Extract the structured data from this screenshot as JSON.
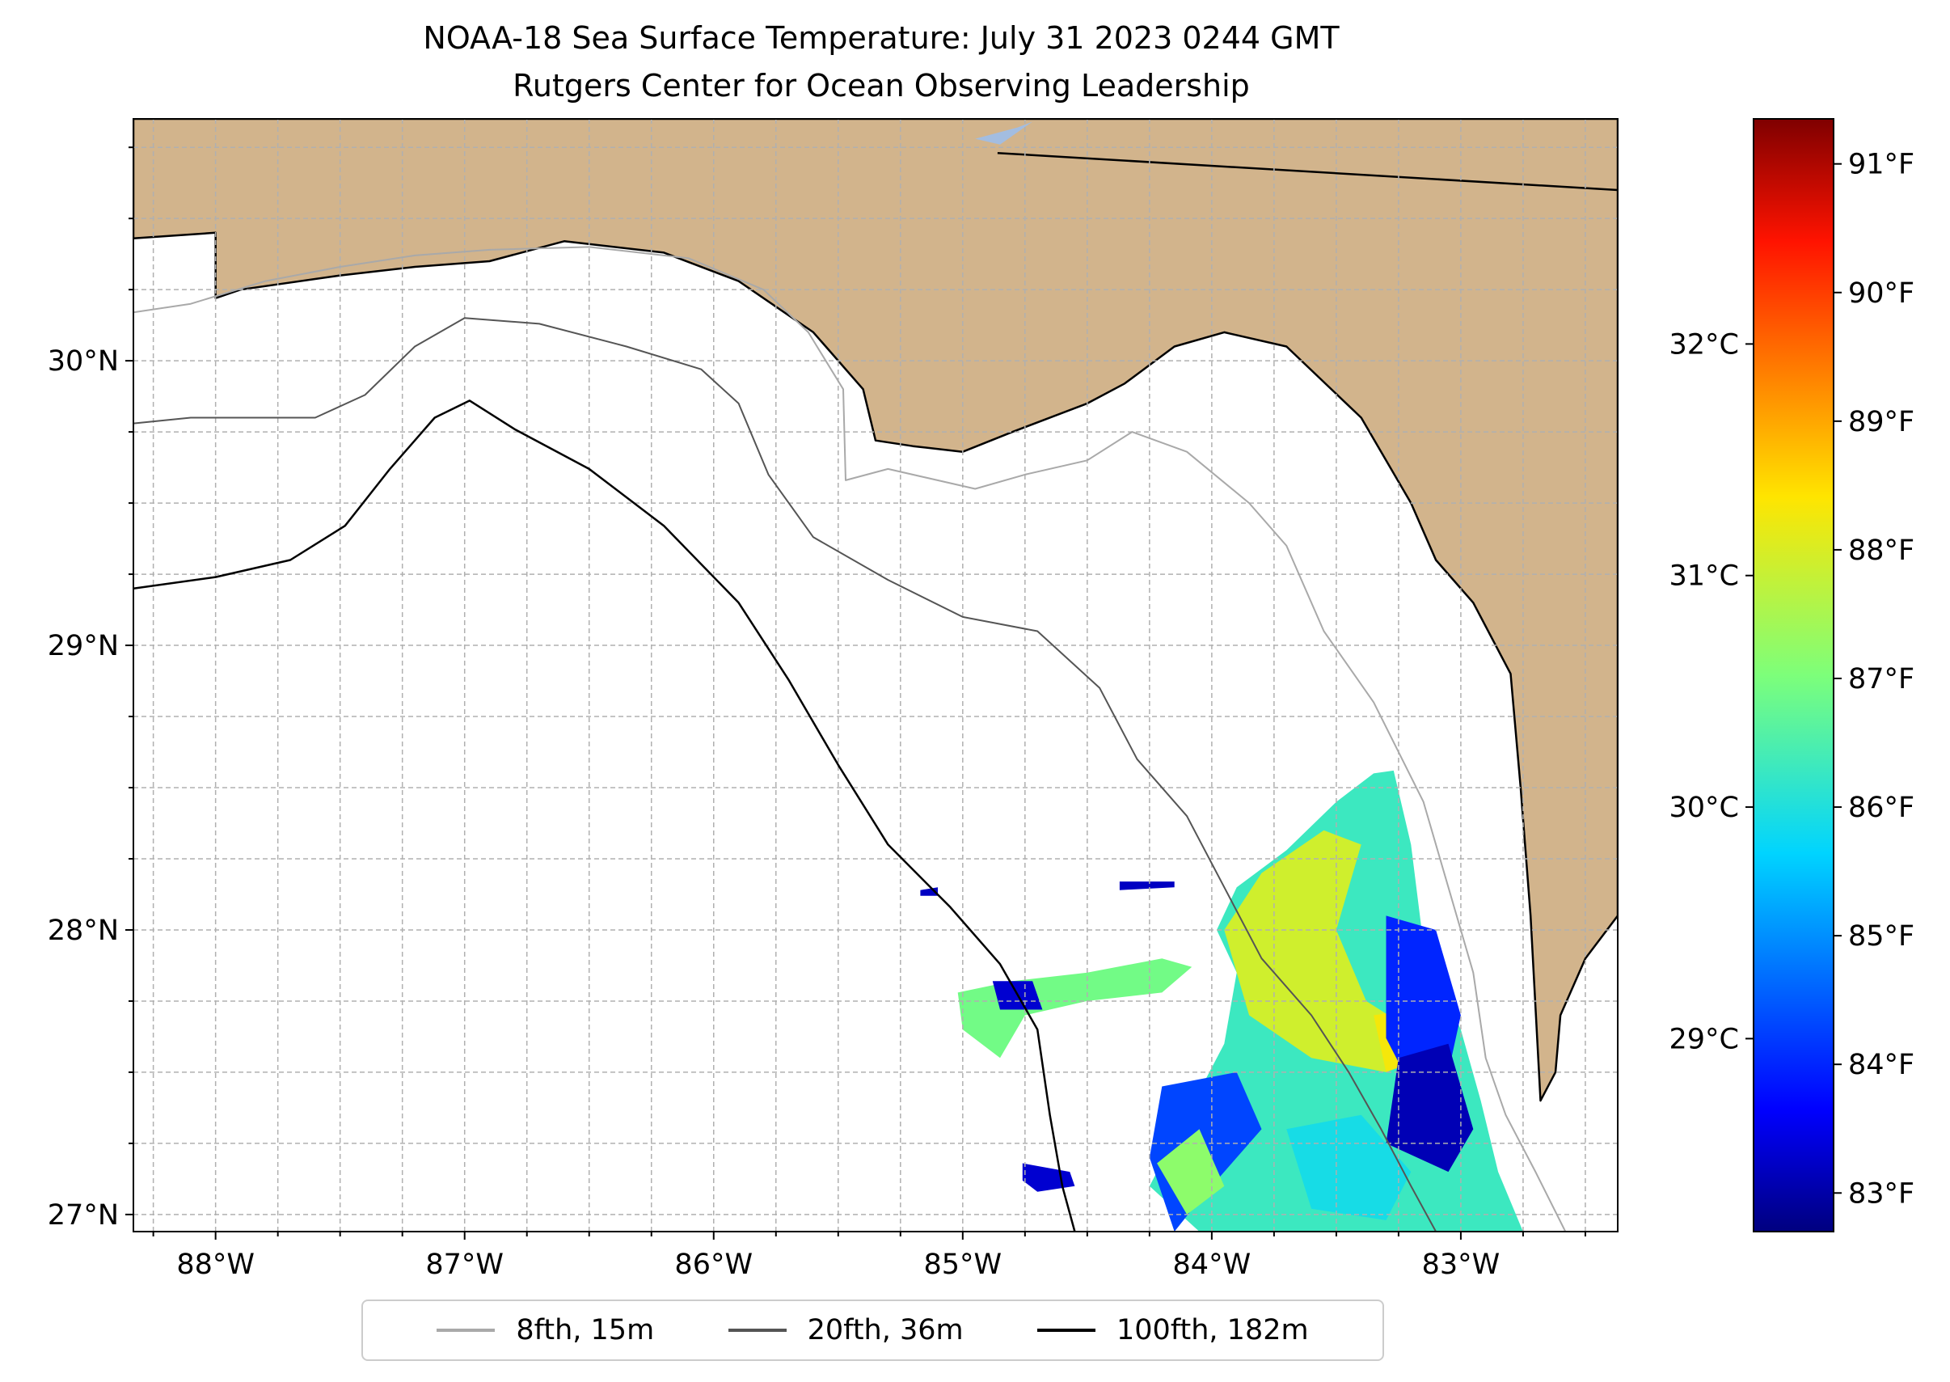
{
  "title": {
    "line1": "NOAA-18 Sea Surface Temperature: July 31 2023 0244 GMT",
    "line2": "Rutgers Center for Ocean Observing Leadership"
  },
  "map": {
    "lon_range": [
      -88.33,
      -82.37
    ],
    "lat_range": [
      26.94,
      30.85
    ],
    "lon_ticks": [
      {
        "value": -88,
        "label": "88°W"
      },
      {
        "value": -87,
        "label": "87°W"
      },
      {
        "value": -86,
        "label": "86°W"
      },
      {
        "value": -85,
        "label": "85°W"
      },
      {
        "value": -84,
        "label": "84°W"
      },
      {
        "value": -83,
        "label": "83°W"
      }
    ],
    "lat_ticks": [
      {
        "value": 27,
        "label": "27°N"
      },
      {
        "value": 28,
        "label": "28°N"
      },
      {
        "value": 29,
        "label": "29°N"
      },
      {
        "value": 30,
        "label": "30°N"
      }
    ],
    "colors": {
      "land": "#d2b48c",
      "ocean": "#ffffff",
      "lake": "#a3bde0",
      "grid": "#b0b0b0"
    }
  },
  "colorbar": {
    "colormap": "jet",
    "range_f": [
      82.7,
      91.35
    ],
    "f_ticks": [
      {
        "value": 83,
        "label": "83°F"
      },
      {
        "value": 84,
        "label": "84°F"
      },
      {
        "value": 85,
        "label": "85°F"
      },
      {
        "value": 86,
        "label": "86°F"
      },
      {
        "value": 87,
        "label": "87°F"
      },
      {
        "value": 88,
        "label": "88°F"
      },
      {
        "value": 89,
        "label": "89°F"
      },
      {
        "value": 90,
        "label": "90°F"
      },
      {
        "value": 91,
        "label": "91°F"
      }
    ],
    "c_ticks": [
      {
        "value": 29,
        "label": "29°C"
      },
      {
        "value": 30,
        "label": "30°C"
      },
      {
        "value": 31,
        "label": "31°C"
      },
      {
        "value": 32,
        "label": "32°C"
      }
    ]
  },
  "legend": {
    "items": [
      {
        "label": "8fth, 15m",
        "color": "#a9a9a9"
      },
      {
        "label": "20fth, 36m",
        "color": "#555555"
      },
      {
        "label": "100fth, 182m",
        "color": "#000000"
      }
    ]
  },
  "isobaths": [
    {
      "name": "8fth",
      "color": "#a9a9a9",
      "width": 2,
      "points": [
        [
          -88.33,
          30.17
        ],
        [
          -88.1,
          30.2
        ],
        [
          -87.8,
          30.28
        ],
        [
          -87.5,
          30.33
        ],
        [
          -87.2,
          30.37
        ],
        [
          -86.9,
          30.39
        ],
        [
          -86.5,
          30.4
        ],
        [
          -86.1,
          30.36
        ],
        [
          -85.8,
          30.25
        ],
        [
          -85.62,
          30.1
        ],
        [
          -85.48,
          29.9
        ],
        [
          -85.47,
          29.58
        ],
        [
          -85.3,
          29.62
        ],
        [
          -84.95,
          29.55
        ],
        [
          -84.75,
          29.6
        ],
        [
          -84.5,
          29.65
        ],
        [
          -84.32,
          29.75
        ],
        [
          -84.1,
          29.68
        ],
        [
          -83.85,
          29.5
        ],
        [
          -83.7,
          29.35
        ],
        [
          -83.55,
          29.05
        ],
        [
          -83.35,
          28.8
        ],
        [
          -83.15,
          28.45
        ],
        [
          -83.05,
          28.15
        ],
        [
          -82.95,
          27.85
        ],
        [
          -82.9,
          27.55
        ],
        [
          -82.82,
          27.35
        ],
        [
          -82.7,
          27.15
        ],
        [
          -82.58,
          26.94
        ]
      ]
    },
    {
      "name": "20fth",
      "color": "#555555",
      "width": 2,
      "points": [
        [
          -88.33,
          29.78
        ],
        [
          -88.1,
          29.8
        ],
        [
          -87.85,
          29.8
        ],
        [
          -87.6,
          29.8
        ],
        [
          -87.4,
          29.88
        ],
        [
          -87.2,
          30.05
        ],
        [
          -87.0,
          30.15
        ],
        [
          -86.7,
          30.13
        ],
        [
          -86.35,
          30.05
        ],
        [
          -86.05,
          29.97
        ],
        [
          -85.9,
          29.85
        ],
        [
          -85.78,
          29.6
        ],
        [
          -85.6,
          29.38
        ],
        [
          -85.3,
          29.23
        ],
        [
          -85.0,
          29.1
        ],
        [
          -84.7,
          29.05
        ],
        [
          -84.45,
          28.85
        ],
        [
          -84.3,
          28.6
        ],
        [
          -84.1,
          28.4
        ],
        [
          -83.95,
          28.15
        ],
        [
          -83.8,
          27.9
        ],
        [
          -83.6,
          27.7
        ],
        [
          -83.45,
          27.5
        ],
        [
          -83.32,
          27.3
        ],
        [
          -83.2,
          27.1
        ],
        [
          -83.1,
          26.94
        ]
      ]
    },
    {
      "name": "100fth",
      "color": "#000000",
      "width": 2.5,
      "points": [
        [
          -88.33,
          29.2
        ],
        [
          -88.0,
          29.24
        ],
        [
          -87.7,
          29.3
        ],
        [
          -87.48,
          29.42
        ],
        [
          -87.3,
          29.62
        ],
        [
          -87.12,
          29.8
        ],
        [
          -86.98,
          29.86
        ],
        [
          -86.8,
          29.76
        ],
        [
          -86.5,
          29.62
        ],
        [
          -86.2,
          29.42
        ],
        [
          -85.9,
          29.15
        ],
        [
          -85.7,
          28.88
        ],
        [
          -85.5,
          28.58
        ],
        [
          -85.3,
          28.3
        ],
        [
          -85.05,
          28.08
        ],
        [
          -84.85,
          27.88
        ],
        [
          -84.7,
          27.65
        ],
        [
          -84.65,
          27.35
        ],
        [
          -84.6,
          27.1
        ],
        [
          -84.55,
          26.94
        ]
      ]
    }
  ],
  "sst_patches": [
    {
      "temp_f": 86.3,
      "points": [
        [
          -83.98,
          28.0
        ],
        [
          -83.9,
          28.15
        ],
        [
          -83.7,
          28.28
        ],
        [
          -83.5,
          28.45
        ],
        [
          -83.35,
          28.55
        ],
        [
          -83.27,
          28.56
        ],
        [
          -83.2,
          28.3
        ],
        [
          -83.15,
          27.95
        ],
        [
          -83.0,
          27.65
        ],
        [
          -82.92,
          27.4
        ],
        [
          -82.85,
          27.15
        ],
        [
          -82.75,
          26.94
        ],
        [
          -84.05,
          26.94
        ],
        [
          -84.25,
          27.1
        ],
        [
          -84.1,
          27.35
        ],
        [
          -83.95,
          27.6
        ],
        [
          -83.9,
          27.85
        ]
      ]
    },
    {
      "temp_f": 87.9,
      "points": [
        [
          -83.95,
          28.0
        ],
        [
          -83.8,
          28.2
        ],
        [
          -83.55,
          28.35
        ],
        [
          -83.4,
          28.3
        ],
        [
          -83.5,
          28.0
        ],
        [
          -83.38,
          27.75
        ],
        [
          -83.2,
          27.65
        ],
        [
          -83.3,
          27.5
        ],
        [
          -83.6,
          27.55
        ],
        [
          -83.85,
          27.7
        ]
      ]
    },
    {
      "temp_f": 88.3,
      "points": [
        [
          -83.35,
          27.7
        ],
        [
          -83.2,
          27.72
        ],
        [
          -83.15,
          27.55
        ],
        [
          -83.3,
          27.5
        ]
      ]
    },
    {
      "temp_f": 84.0,
      "points": [
        [
          -83.3,
          28.05
        ],
        [
          -83.1,
          28.0
        ],
        [
          -83.0,
          27.7
        ],
        [
          -83.05,
          27.5
        ],
        [
          -83.2,
          27.45
        ],
        [
          -83.3,
          27.62
        ]
      ]
    },
    {
      "temp_f": 83.1,
      "points": [
        [
          -83.25,
          27.55
        ],
        [
          -83.05,
          27.6
        ],
        [
          -82.95,
          27.3
        ],
        [
          -83.05,
          27.15
        ],
        [
          -83.3,
          27.25
        ]
      ]
    },
    {
      "temp_f": 84.3,
      "points": [
        [
          -84.2,
          27.45
        ],
        [
          -83.9,
          27.5
        ],
        [
          -83.8,
          27.3
        ],
        [
          -84.05,
          27.05
        ],
        [
          -84.15,
          26.94
        ],
        [
          -84.25,
          27.2
        ]
      ]
    },
    {
      "temp_f": 85.9,
      "points": [
        [
          -83.7,
          27.3
        ],
        [
          -83.4,
          27.35
        ],
        [
          -83.2,
          27.15
        ],
        [
          -83.3,
          26.98
        ],
        [
          -83.6,
          27.02
        ]
      ]
    },
    {
      "temp_f": 87.2,
      "points": [
        [
          -84.22,
          27.18
        ],
        [
          -84.05,
          27.3
        ],
        [
          -83.95,
          27.1
        ],
        [
          -84.1,
          27.0
        ]
      ]
    },
    {
      "temp_f": 86.9,
      "points": [
        [
          -85.02,
          27.78
        ],
        [
          -84.8,
          27.82
        ],
        [
          -84.5,
          27.85
        ],
        [
          -84.2,
          27.9
        ],
        [
          -84.08,
          27.87
        ],
        [
          -84.2,
          27.78
        ],
        [
          -84.5,
          27.75
        ],
        [
          -84.75,
          27.7
        ],
        [
          -84.85,
          27.55
        ],
        [
          -85.0,
          27.65
        ]
      ]
    },
    {
      "temp_f": 83.3,
      "points": [
        [
          -84.88,
          27.82
        ],
        [
          -84.72,
          27.82
        ],
        [
          -84.68,
          27.72
        ],
        [
          -84.85,
          27.72
        ]
      ]
    },
    {
      "temp_f": 83.3,
      "points": [
        [
          -84.76,
          27.18
        ],
        [
          -84.57,
          27.15
        ],
        [
          -84.55,
          27.1
        ],
        [
          -84.7,
          27.08
        ],
        [
          -84.76,
          27.12
        ]
      ]
    },
    {
      "temp_f": 83.2,
      "points": [
        [
          -85.17,
          28.14
        ],
        [
          -85.1,
          28.15
        ],
        [
          -85.1,
          28.12
        ],
        [
          -85.17,
          28.12
        ]
      ]
    },
    {
      "temp_f": 83.2,
      "points": [
        [
          -84.37,
          28.17
        ],
        [
          -84.15,
          28.17
        ],
        [
          -84.15,
          28.15
        ],
        [
          -84.37,
          28.14
        ]
      ]
    }
  ],
  "land_areas": [
    {
      "name": "north-land",
      "points": [
        [
          -88.33,
          30.85
        ],
        [
          -82.37,
          30.85
        ],
        [
          -82.37,
          28.05
        ],
        [
          -82.5,
          27.9
        ],
        [
          -82.6,
          27.7
        ],
        [
          -82.62,
          27.5
        ],
        [
          -82.68,
          27.4
        ],
        [
          -82.72,
          28.05
        ],
        [
          -82.76,
          28.5
        ],
        [
          -82.8,
          28.9
        ],
        [
          -82.95,
          29.15
        ],
        [
          -83.1,
          29.3
        ],
        [
          -83.2,
          29.5
        ],
        [
          -83.4,
          29.8
        ],
        [
          -83.7,
          30.05
        ],
        [
          -83.95,
          30.1
        ],
        [
          -84.15,
          30.05
        ],
        [
          -84.35,
          29.92
        ],
        [
          -84.5,
          29.85
        ],
        [
          -84.8,
          29.75
        ],
        [
          -85.0,
          29.68
        ],
        [
          -85.2,
          29.7
        ],
        [
          -85.35,
          29.72
        ],
        [
          -85.4,
          29.9
        ],
        [
          -85.6,
          30.1
        ],
        [
          -85.9,
          30.28
        ],
        [
          -86.2,
          30.38
        ],
        [
          -86.6,
          30.42
        ],
        [
          -86.9,
          30.35
        ],
        [
          -87.2,
          30.33
        ],
        [
          -87.5,
          30.3
        ],
        [
          -87.9,
          30.25
        ],
        [
          -88.0,
          30.22
        ],
        [
          -88.0,
          30.45
        ],
        [
          -88.33,
          30.43
        ]
      ]
    }
  ],
  "boundary": [
    [
      -84.86,
      30.73
    ],
    [
      -82.37,
      30.6
    ]
  ],
  "lake": [
    [
      -84.95,
      30.78
    ],
    [
      -84.78,
      30.82
    ],
    [
      -84.72,
      30.84
    ],
    [
      -84.85,
      30.76
    ]
  ]
}
